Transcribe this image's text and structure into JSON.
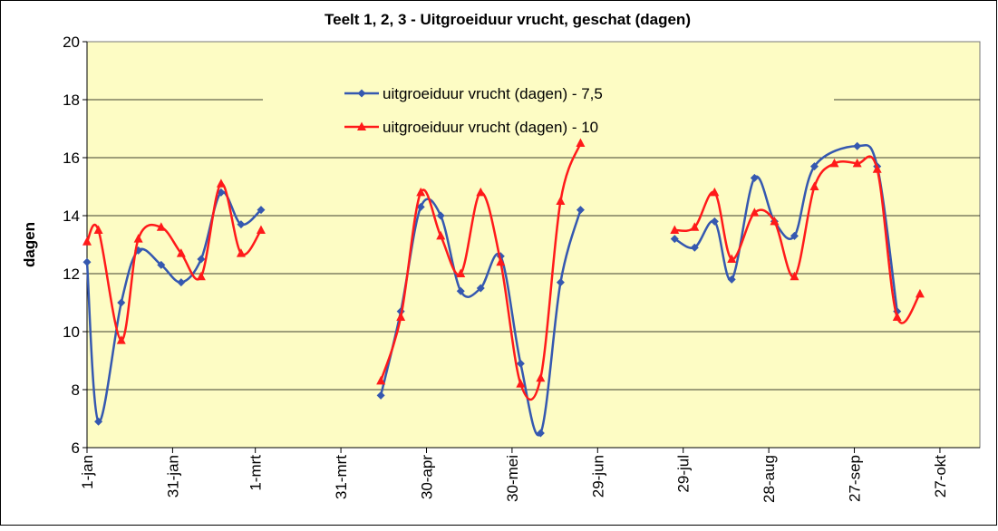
{
  "chart_data": {
    "type": "line",
    "title": "Teelt 1, 2, 3 - Uitgroeiduur vrucht, geschat (dagen)",
    "y_label": "dagen",
    "xlim": [
      0,
      313
    ],
    "xticks": [
      {
        "value": 0,
        "label": "1-jan"
      },
      {
        "value": 30,
        "label": "31-jan"
      },
      {
        "value": 59,
        "label": "1-mrt"
      },
      {
        "value": 89,
        "label": "31-mrt"
      },
      {
        "value": 119,
        "label": "30-apr"
      },
      {
        "value": 149,
        "label": "30-mei"
      },
      {
        "value": 179,
        "label": "29-jun"
      },
      {
        "value": 209,
        "label": "29-jul"
      },
      {
        "value": 239,
        "label": "28-aug"
      },
      {
        "value": 269,
        "label": "27-sep"
      },
      {
        "value": 299,
        "label": "27-okt"
      }
    ],
    "ylim": [
      6,
      20
    ],
    "yticks": [
      6,
      8,
      10,
      12,
      14,
      16,
      18,
      20
    ],
    "grid": true,
    "legend": "top",
    "series": [
      {
        "name": "uitgroeiduur vrucht (dagen)  - 7,5",
        "color": "#3558b0",
        "marker": "diamond",
        "x": [
          0,
          4,
          12,
          18,
          26,
          33,
          40,
          47,
          54,
          61,
          103,
          110,
          117,
          124,
          131,
          138,
          145,
          152,
          159,
          166,
          173,
          206,
          213,
          220,
          226,
          234,
          241,
          248,
          255,
          270,
          277,
          284
        ],
        "values": [
          12.4,
          6.9,
          11.0,
          12.8,
          12.3,
          11.7,
          12.5,
          14.8,
          13.7,
          14.2,
          7.8,
          10.7,
          14.3,
          14.0,
          11.4,
          11.5,
          12.6,
          8.9,
          6.5,
          11.7,
          14.2,
          13.2,
          12.9,
          13.8,
          11.8,
          15.3,
          13.8,
          13.3,
          15.7,
          16.4,
          15.7,
          10.7
        ]
      },
      {
        "name": "uitgroeiduur vrucht (dagen)  - 10",
        "color": "#ff1a1a",
        "marker": "triangle",
        "x": [
          0,
          4,
          12,
          18,
          26,
          33,
          40,
          47,
          54,
          61,
          103,
          110,
          117,
          124,
          131,
          138,
          145,
          152,
          159,
          166,
          173,
          206,
          213,
          220,
          226,
          234,
          241,
          248,
          255,
          262,
          270,
          277,
          284,
          292
        ],
        "values": [
          13.1,
          13.5,
          9.7,
          13.2,
          13.6,
          12.7,
          11.9,
          15.1,
          12.7,
          13.5,
          8.3,
          10.5,
          14.8,
          13.3,
          12.0,
          14.8,
          12.4,
          8.2,
          8.4,
          14.5,
          16.5,
          13.5,
          13.6,
          14.8,
          12.5,
          14.1,
          13.8,
          11.9,
          15.0,
          15.8,
          15.8,
          15.6,
          10.5,
          11.3
        ]
      }
    ]
  }
}
